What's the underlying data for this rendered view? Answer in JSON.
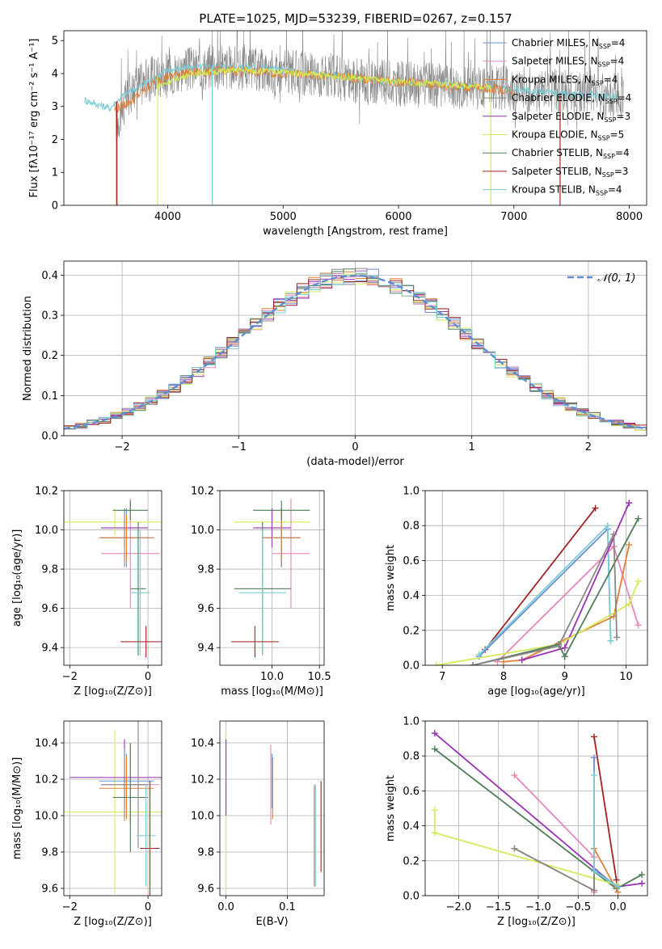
{
  "title": "PLATE=1025, MJD=53239, FIBERID=0267, z=0.157",
  "colors": {
    "chabrier_miles": "#6a8fd6",
    "salpeter_miles": "#e987b8",
    "kroupa_miles": "#e0803a",
    "chabrier_elodie": "#888888",
    "salpeter_elodie": "#9a32b5",
    "kroupa_elodie": "#d3ec5a",
    "chabrier_stelib": "#4e7d58",
    "salpeter_stelib": "#a32222",
    "kroupa_stelib": "#7cccd4",
    "normal_curve": "#5f8dd3",
    "grid": "#b0b0b0"
  },
  "chart_data": [
    {
      "id": "spectrum",
      "type": "line",
      "xlabel": "wavelength [Angstrom, rest frame]",
      "ylabel": "Flux [fλ10⁻¹⁷ erg cm⁻² s⁻¹ A⁻¹]",
      "xlim": [
        3100,
        8150
      ],
      "ylim": [
        0,
        5.3
      ],
      "xticks": [
        4000,
        5000,
        6000,
        7000,
        8000
      ],
      "yticks": [
        0,
        1,
        2,
        3,
        4,
        5
      ],
      "grid": false,
      "legend_position": "right",
      "legend": [
        {
          "label": "Chabrier MILES, N",
          "sub": "SSP",
          "suffix": "=4",
          "color": "chabrier_miles"
        },
        {
          "label": "Salpeter MILES, N",
          "sub": "SSP",
          "suffix": "=4",
          "color": "salpeter_miles"
        },
        {
          "label": "Kroupa MILES, N",
          "sub": "SSP",
          "suffix": "=4",
          "color": "kroupa_miles"
        },
        {
          "label": "Chabrier ELODIE, N",
          "sub": "SSP",
          "suffix": "=4",
          "color": "chabrier_elodie"
        },
        {
          "label": "Salpeter ELODIE, N",
          "sub": "SSP",
          "suffix": "=3",
          "color": "salpeter_elodie"
        },
        {
          "label": "Kroupa ELODIE, N",
          "sub": "SSP",
          "suffix": "=5",
          "color": "kroupa_elodie"
        },
        {
          "label": "Chabrier STELIB, N",
          "sub": "SSP",
          "suffix": "=4",
          "color": "chabrier_stelib"
        },
        {
          "label": "Salpeter STELIB, N",
          "sub": "SSP",
          "suffix": "=3",
          "color": "salpeter_stelib"
        },
        {
          "label": "Kroupa STELIB, N",
          "sub": "SSP",
          "suffix": "=4",
          "color": "kroupa_stelib"
        }
      ],
      "series": [
        {
          "name": "data",
          "color": "chabrier_elodie",
          "x_range": [
            3550,
            7950
          ],
          "profile": [
            [
              3550,
              2.5
            ],
            [
              3700,
              3.6
            ],
            [
              3900,
              3.9
            ],
            [
              4100,
              4.1
            ],
            [
              4400,
              4.2
            ],
            [
              4800,
              4.1
            ],
            [
              5200,
              4.0
            ],
            [
              5600,
              3.8
            ],
            [
              6000,
              3.7
            ],
            [
              6400,
              3.6
            ],
            [
              6800,
              3.6
            ],
            [
              7200,
              3.5
            ],
            [
              7600,
              3.4
            ],
            [
              7950,
              3.3
            ]
          ],
          "noise": 0.7
        },
        {
          "name": "model-kroupa-stelib",
          "color": "kroupa_stelib",
          "x_range": [
            3280,
            7900
          ],
          "profile": [
            [
              3280,
              3.2
            ],
            [
              3400,
              3.05
            ],
            [
              3500,
              2.95
            ],
            [
              3600,
              3.3
            ],
            [
              3800,
              3.7
            ],
            [
              4000,
              4.1
            ],
            [
              4300,
              4.2
            ],
            [
              4700,
              4.2
            ],
            [
              5000,
              4.1
            ],
            [
              5400,
              3.95
            ],
            [
              5800,
              3.8
            ],
            [
              6200,
              3.7
            ],
            [
              6600,
              3.6
            ],
            [
              7000,
              3.5
            ],
            [
              7400,
              3.4
            ],
            [
              7900,
              3.3
            ]
          ],
          "noise": 0.12
        },
        {
          "name": "model-kroupa-miles",
          "color": "kroupa_miles",
          "x_range": [
            3540,
            7000
          ],
          "profile": [
            [
              3540,
              2.9
            ],
            [
              3700,
              3.2
            ],
            [
              3900,
              3.8
            ],
            [
              4100,
              4.0
            ],
            [
              4500,
              4.1
            ],
            [
              5000,
              4.0
            ],
            [
              5500,
              3.9
            ],
            [
              6000,
              3.75
            ],
            [
              6500,
              3.6
            ],
            [
              7000,
              3.5
            ]
          ],
          "noise": 0.15
        },
        {
          "name": "model-kroupa-elodie",
          "color": "kroupa_elodie",
          "x_range": [
            3900,
            6800
          ],
          "profile": [
            [
              3900,
              3.6
            ],
            [
              4200,
              4.0
            ],
            [
              4600,
              4.1
            ],
            [
              5000,
              4.05
            ],
            [
              5500,
              3.9
            ],
            [
              6000,
              3.75
            ],
            [
              6500,
              3.65
            ],
            [
              6800,
              3.6
            ]
          ],
          "noise": 0.1
        }
      ],
      "absorption_lines": [
        3555,
        3560,
        3913,
        4386,
        6800,
        7400
      ]
    },
    {
      "id": "residuals",
      "type": "histogram",
      "xlabel": "(data-model)/error",
      "ylabel": "Normed distribution",
      "xlim": [
        -2.5,
        2.5
      ],
      "ylim": [
        0,
        0.435
      ],
      "xticks": [
        -2,
        -1,
        0,
        1,
        2
      ],
      "yticks": [
        0.0,
        0.1,
        0.2,
        0.3,
        0.4
      ],
      "grid": true,
      "legend_position": "top-right",
      "legend_label": "𝒩(0, 1)",
      "bin_width": 0.1,
      "series_colors": [
        "chabrier_miles",
        "salpeter_miles",
        "kroupa_miles",
        "chabrier_elodie",
        "salpeter_elodie",
        "kroupa_elodie",
        "chabrier_stelib",
        "salpeter_stelib",
        "kroupa_stelib"
      ],
      "normal_curve": {
        "mean": 0,
        "sigma": 1,
        "color": "normal_curve"
      }
    },
    {
      "id": "age-vs-Z",
      "type": "errorbar",
      "xlabel": "Z [log₁₀(Z/Z⊙)]",
      "ylabel": "age  [log₁₀(age/yr)]",
      "xlim": [
        -2.15,
        0.35
      ],
      "ylim": [
        9.31,
        10.2
      ],
      "xticks": [
        -2,
        0
      ],
      "yticks": [
        9.4,
        9.6,
        9.8,
        10.0,
        10.2
      ],
      "grid": true,
      "bars": [
        {
          "x": -0.85,
          "xerr": 1.3,
          "y": 10.04,
          "yerr": 0.07,
          "color": "kroupa_elodie"
        },
        {
          "x": -0.45,
          "xerr": 0.75,
          "y": 9.88,
          "yerr": 0.28,
          "color": "salpeter_miles"
        },
        {
          "x": -0.6,
          "xerr": 0.6,
          "y": 10.01,
          "yerr": 0.1,
          "color": "salpeter_elodie"
        },
        {
          "x": -0.55,
          "xerr": 0.7,
          "y": 9.96,
          "yerr": 0.15,
          "color": "chabrier_miles"
        },
        {
          "x": -0.6,
          "xerr": 0.6,
          "y": 9.96,
          "yerr": 0.15,
          "color": "chabrier_elodie"
        },
        {
          "x": -0.55,
          "xerr": 0.7,
          "y": 9.96,
          "yerr": 0.12,
          "color": "kroupa_miles"
        },
        {
          "x": -0.45,
          "xerr": 0.45,
          "y": 10.1,
          "yerr": 0.05,
          "color": "chabrier_stelib"
        },
        {
          "x": -0.25,
          "xerr": 0.2,
          "y": 9.7,
          "yerr": 0.34,
          "color": "chabrier_stelib"
        },
        {
          "x": -0.2,
          "xerr": 0.25,
          "y": 9.68,
          "yerr": 0.32,
          "color": "kroupa_stelib"
        },
        {
          "x": -0.05,
          "xerr": 0.65,
          "y": 9.43,
          "yerr": 0.08,
          "color": "salpeter_stelib"
        }
      ]
    },
    {
      "id": "age-vs-mass",
      "type": "errorbar",
      "xlabel": "mass [log₁₀(M/M⊙)]",
      "ylabel": "",
      "xlim": [
        9.45,
        10.55
      ],
      "ylim": [
        9.31,
        10.2
      ],
      "xticks": [
        10.0,
        10.5
      ],
      "yticks": [
        9.4,
        9.6,
        9.8,
        10.0,
        10.2
      ],
      "grid": true,
      "bars": [
        {
          "x": 10.0,
          "xerr": 0.4,
          "y": 10.04,
          "yerr": 0.07,
          "color": "kroupa_elodie"
        },
        {
          "x": 10.2,
          "xerr": 0.2,
          "y": 9.88,
          "yerr": 0.28,
          "color": "salpeter_miles"
        },
        {
          "x": 10.0,
          "xerr": 0.2,
          "y": 10.01,
          "yerr": 0.1,
          "color": "salpeter_elodie"
        },
        {
          "x": 10.1,
          "xerr": 0.2,
          "y": 9.96,
          "yerr": 0.15,
          "color": "chabrier_miles"
        },
        {
          "x": 10.1,
          "xerr": 0.2,
          "y": 9.96,
          "yerr": 0.15,
          "color": "chabrier_elodie"
        },
        {
          "x": 10.1,
          "xerr": 0.2,
          "y": 9.96,
          "yerr": 0.12,
          "color": "kroupa_miles"
        },
        {
          "x": 10.1,
          "xerr": 0.3,
          "y": 10.1,
          "yerr": 0.05,
          "color": "chabrier_stelib"
        },
        {
          "x": 9.9,
          "xerr": 0.3,
          "y": 9.7,
          "yerr": 0.34,
          "color": "chabrier_stelib"
        },
        {
          "x": 9.9,
          "xerr": 0.25,
          "y": 9.68,
          "yerr": 0.32,
          "color": "kroupa_stelib"
        },
        {
          "x": 9.82,
          "xerr": 0.25,
          "y": 9.43,
          "yerr": 0.08,
          "color": "salpeter_stelib"
        }
      ]
    },
    {
      "id": "massweight-vs-age",
      "type": "line",
      "xlabel": "age  [log₁₀(age/yr)]",
      "ylabel": "mass weight",
      "xlim": [
        6.72,
        10.35
      ],
      "ylim": [
        0,
        1.0
      ],
      "xticks": [
        7,
        8,
        9,
        10
      ],
      "yticks": [
        0.0,
        0.2,
        0.4,
        0.6,
        0.8,
        1.0
      ],
      "grid": true,
      "series": [
        {
          "color": "salpeter_stelib",
          "x": [
            7.7,
            9.5
          ],
          "y": [
            0.09,
            0.9
          ]
        },
        {
          "color": "chabrier_miles",
          "x": [
            7.6,
            9.7,
            9.75
          ],
          "y": [
            0.05,
            0.78,
            0.14
          ]
        },
        {
          "color": "kroupa_stelib",
          "x": [
            7.6,
            9.7,
            9.75
          ],
          "y": [
            0.06,
            0.8,
            0.14
          ]
        },
        {
          "color": "salpeter_miles",
          "x": [
            7.9,
            9.8,
            10.2
          ],
          "y": [
            0.02,
            0.68,
            0.23
          ]
        },
        {
          "color": "kroupa_miles",
          "x": [
            8.0,
            8.3,
            9.8,
            10.05
          ],
          "y": [
            0.02,
            0.03,
            0.28,
            0.69
          ]
        },
        {
          "color": "salpeter_elodie",
          "x": [
            8.3,
            9.0,
            10.05
          ],
          "y": [
            0.03,
            0.1,
            0.93
          ]
        },
        {
          "color": "kroupa_elodie",
          "x": [
            6.9,
            8.9,
            10.05,
            10.2
          ],
          "y": [
            0.0,
            0.12,
            0.35,
            0.48
          ]
        },
        {
          "color": "chabrier_stelib",
          "x": [
            7.5,
            8.9,
            9.0,
            10.2
          ],
          "y": [
            0.0,
            0.12,
            0.05,
            0.84
          ]
        },
        {
          "color": "chabrier_elodie",
          "x": [
            7.5,
            8.9,
            9.8,
            9.85
          ],
          "y": [
            0.0,
            0.11,
            0.75,
            0.16
          ]
        }
      ]
    },
    {
      "id": "mass-vs-Z",
      "type": "errorbar",
      "xlabel": "Z [log₁₀(Z/Z⊙)]",
      "ylabel": "mass [log₁₀(M/M⊙)]",
      "xlim": [
        -2.15,
        0.35
      ],
      "ylim": [
        9.56,
        10.52
      ],
      "xticks": [
        -2,
        0
      ],
      "yticks": [
        9.6,
        9.8,
        10.0,
        10.2,
        10.4
      ],
      "grid": true,
      "bars": [
        {
          "x": -0.85,
          "xerr": 1.3,
          "y": 10.02,
          "yerr": 0.45,
          "color": "kroupa_elodie"
        },
        {
          "x": -0.45,
          "xerr": 0.75,
          "y": 10.17,
          "yerr": 0.22,
          "color": "salpeter_miles"
        },
        {
          "x": -0.6,
          "xerr": 1.4,
          "y": 10.21,
          "yerr": 0.21,
          "color": "salpeter_elodie"
        },
        {
          "x": -0.55,
          "xerr": 0.7,
          "y": 10.19,
          "yerr": 0.15,
          "color": "chabrier_miles"
        },
        {
          "x": -0.6,
          "xerr": 0.6,
          "y": 10.17,
          "yerr": 0.2,
          "color": "chabrier_elodie"
        },
        {
          "x": -0.55,
          "xerr": 0.7,
          "y": 10.15,
          "yerr": 0.17,
          "color": "kroupa_miles"
        },
        {
          "x": -0.45,
          "xerr": 0.45,
          "y": 10.1,
          "yerr": 0.3,
          "color": "chabrier_stelib"
        },
        {
          "x": -0.25,
          "xerr": 0.2,
          "y": 10.17,
          "yerr": 0.35,
          "color": "chabrier_elodie"
        },
        {
          "x": -0.05,
          "xerr": 0.25,
          "y": 9.89,
          "yerr": 0.28,
          "color": "kroupa_stelib"
        },
        {
          "x": 0.05,
          "xerr": 0.25,
          "y": 9.82,
          "yerr": 0.37,
          "color": "salpeter_stelib"
        }
      ]
    },
    {
      "id": "mass-vs-EBV",
      "type": "errorbar",
      "xlabel": "E(B-V)",
      "ylabel": "",
      "xlim": [
        -0.01,
        0.16
      ],
      "ylim": [
        9.56,
        10.52
      ],
      "xticks": [
        0.0,
        0.1
      ],
      "yticks": [
        9.6,
        9.8,
        10.0,
        10.2,
        10.4
      ],
      "grid": true,
      "bars": [
        {
          "x": 0.0,
          "y": 10.02,
          "yerr": 0.45,
          "color": "kroupa_elodie"
        },
        {
          "x": 0.0,
          "y": 10.21,
          "yerr": 0.21,
          "color": "salpeter_elodie"
        },
        {
          "x": 0.073,
          "y": 10.17,
          "yerr": 0.22,
          "color": "salpeter_miles"
        },
        {
          "x": 0.075,
          "y": 10.19,
          "yerr": 0.15,
          "color": "chabrier_miles"
        },
        {
          "x": 0.076,
          "y": 10.15,
          "yerr": 0.17,
          "color": "kroupa_miles"
        },
        {
          "x": 0.144,
          "y": 9.89,
          "yerr": 0.28,
          "color": "chabrier_elodie"
        },
        {
          "x": 0.146,
          "y": 9.89,
          "yerr": 0.28,
          "color": "kroupa_stelib"
        },
        {
          "x": 0.155,
          "y": 9.94,
          "yerr": 0.25,
          "color": "salpeter_stelib"
        }
      ]
    },
    {
      "id": "massweight-vs-Z",
      "type": "line",
      "xlabel": "Z [log₁₀(Z/Z⊙)]",
      "ylabel": "mass weight",
      "xlim": [
        -2.42,
        0.37
      ],
      "ylim": [
        0,
        1.0
      ],
      "xticks": [
        -2.0,
        -1.5,
        -1.0,
        -0.5,
        0.0
      ],
      "yticks": [
        0.0,
        0.2,
        0.4,
        0.6,
        0.8,
        1.0
      ],
      "grid": true,
      "series": [
        {
          "color": "salpeter_elodie",
          "x": [
            -2.3,
            -0.02,
            0.3
          ],
          "y": [
            0.93,
            0.05,
            0.07
          ]
        },
        {
          "color": "chabrier_stelib",
          "x": [
            -2.3,
            -0.02,
            0.3
          ],
          "y": [
            0.84,
            0.04,
            0.12
          ]
        },
        {
          "color": "kroupa_elodie",
          "x": [
            -2.3,
            -2.3,
            0.0
          ],
          "y": [
            0.49,
            0.36,
            0.06
          ]
        },
        {
          "color": "salpeter_miles",
          "x": [
            -1.3,
            -0.3,
            -0.3
          ],
          "y": [
            0.69,
            0.22,
            0.02
          ]
        },
        {
          "color": "kroupa_miles",
          "x": [
            -1.3,
            -0.3,
            -0.3,
            0.0
          ],
          "y": [
            0.27,
            0.03,
            0.27,
            0.02
          ]
        },
        {
          "color": "chabrier_elodie",
          "x": [
            -1.3,
            -0.3,
            -0.3
          ],
          "y": [
            0.27,
            0.03,
            0.15
          ]
        },
        {
          "color": "salpeter_stelib",
          "x": [
            -0.3,
            -0.02
          ],
          "y": [
            0.91,
            0.09
          ]
        },
        {
          "color": "chabrier_miles",
          "x": [
            -0.3,
            -0.3,
            0.0
          ],
          "y": [
            0.79,
            0.15,
            0.05
          ]
        },
        {
          "color": "kroupa_stelib",
          "x": [
            -0.3,
            -0.3,
            0.0
          ],
          "y": [
            0.69,
            0.14,
            0.05
          ]
        }
      ]
    }
  ]
}
